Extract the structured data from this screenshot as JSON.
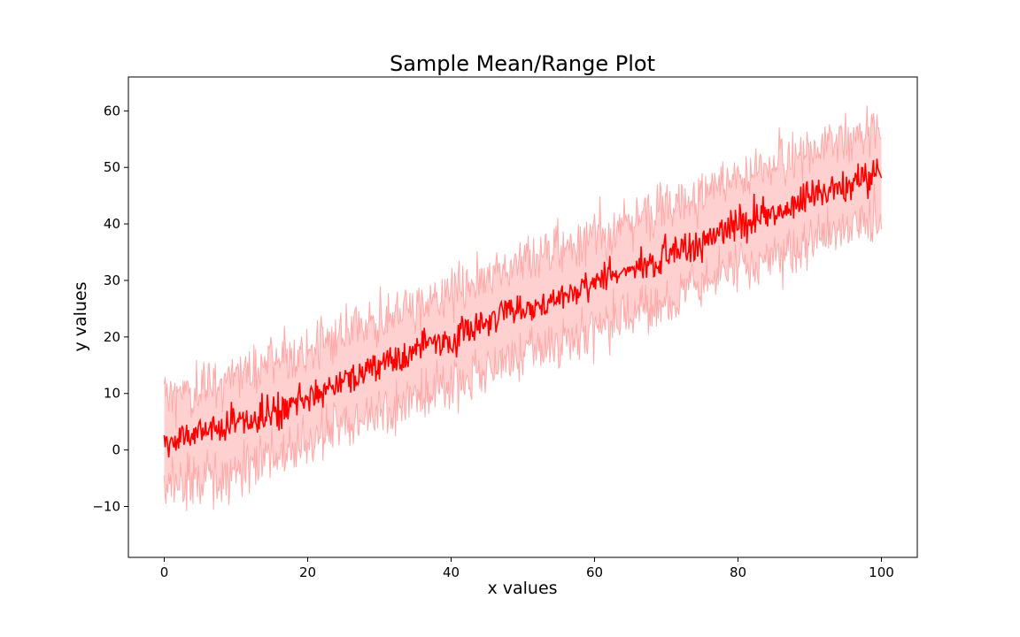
{
  "chart_data": {
    "type": "line",
    "title": "Sample Mean/Range Plot",
    "xlabel": "x values",
    "ylabel": "y values",
    "xlim": [
      -5,
      105
    ],
    "ylim": [
      -19,
      66
    ],
    "xticks": [
      0,
      20,
      40,
      60,
      80,
      100
    ],
    "yticks": [
      -10,
      0,
      10,
      20,
      30,
      40,
      50,
      60
    ],
    "grid": false,
    "colors": {
      "mean": "#ff0000",
      "range": "#ffaaaa"
    },
    "series": [
      {
        "role": "mean",
        "x": [
          0,
          2.5,
          5,
          7.5,
          10,
          12.5,
          15,
          17.5,
          20,
          22.5,
          25,
          27.5,
          30,
          32.5,
          35,
          37.5,
          40,
          42.5,
          45,
          47.5,
          50,
          52.5,
          55,
          57.5,
          60,
          62.5,
          65,
          67.5,
          70,
          72.5,
          75,
          77.5,
          80,
          82.5,
          85,
          87.5,
          90,
          92.5,
          95,
          97.5,
          100
        ],
        "y": [
          1,
          2,
          3,
          3.5,
          5,
          5.5,
          7,
          8,
          9,
          11,
          12,
          13,
          15,
          16,
          17.5,
          18.5,
          20,
          21,
          23,
          24,
          25,
          26,
          27,
          28.5,
          29.5,
          31,
          32,
          33.5,
          35,
          36,
          37,
          38.5,
          40,
          41,
          42,
          43.5,
          45,
          46,
          47,
          48,
          49.5
        ]
      },
      {
        "role": "upper",
        "x": [
          0,
          2.5,
          5,
          7.5,
          10,
          12.5,
          15,
          17.5,
          20,
          22.5,
          25,
          27.5,
          30,
          32.5,
          35,
          37.5,
          40,
          42.5,
          45,
          47.5,
          50,
          52.5,
          55,
          57.5,
          60,
          62.5,
          65,
          67.5,
          70,
          72.5,
          75,
          77.5,
          80,
          82.5,
          85,
          87.5,
          90,
          92.5,
          95,
          97.5,
          100
        ],
        "y": [
          10,
          10,
          11,
          11.5,
          13,
          14,
          15.5,
          16,
          17.5,
          19,
          20,
          21,
          23,
          24,
          25.5,
          26.5,
          28,
          29,
          31,
          32,
          33,
          34,
          35,
          36.5,
          37.5,
          39,
          40,
          41.5,
          43,
          44,
          45,
          46.5,
          48,
          49,
          50,
          51.5,
          53,
          54,
          55,
          56,
          57
        ]
      },
      {
        "role": "lower",
        "x": [
          0,
          2.5,
          5,
          7.5,
          10,
          12.5,
          15,
          17.5,
          20,
          22.5,
          25,
          27.5,
          30,
          32.5,
          35,
          37.5,
          40,
          42.5,
          45,
          47.5,
          50,
          52.5,
          55,
          57.5,
          60,
          62.5,
          65,
          67.5,
          70,
          72.5,
          75,
          77.5,
          80,
          82.5,
          85,
          87.5,
          90,
          92.5,
          95,
          97.5,
          100
        ],
        "y": [
          -7,
          -6,
          -5,
          -4.5,
          -3,
          -2.5,
          -1,
          0,
          1,
          3,
          4,
          5,
          7,
          8,
          9.5,
          10.5,
          12,
          13,
          15,
          16,
          17,
          18,
          19,
          20.5,
          21.5,
          23,
          24,
          25.5,
          27,
          28,
          29,
          30.5,
          32,
          33,
          34,
          35.5,
          37,
          38,
          39,
          40,
          41
        ]
      }
    ]
  }
}
